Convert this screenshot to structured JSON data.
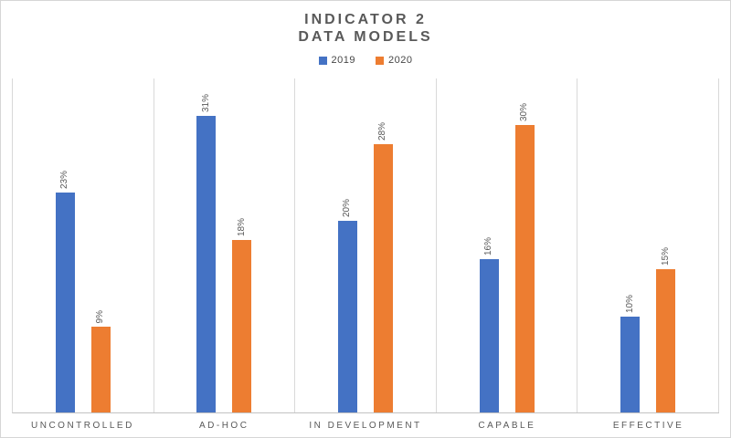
{
  "title": {
    "line1": "INDICATOR 2",
    "line2": "DATA MODELS"
  },
  "chart_data": {
    "type": "bar",
    "title": "INDICATOR 2 DATA MODELS",
    "categories": [
      "UNCONTROLLED",
      "AD-HOC",
      "IN DEVELOPMENT",
      "CAPABLE",
      "EFFECTIVE"
    ],
    "series": [
      {
        "name": "2019",
        "color": "#4472C4",
        "values": [
          23,
          31,
          20,
          16,
          10
        ]
      },
      {
        "name": "2020",
        "color": "#ED7D31",
        "values": [
          9,
          18,
          28,
          30,
          15
        ]
      }
    ],
    "value_suffix": "%",
    "data_labels": "rotated-90-above-bar",
    "ylim": [
      0,
      35
    ],
    "xlabel": "",
    "ylabel": "",
    "y_axis_ticks": "hidden",
    "grid": "vertical-panel-separators-only",
    "legend_position": "top-center"
  },
  "colors": {
    "series_2019": "#4472C4",
    "series_2020": "#ED7D31",
    "title_text": "#595959",
    "axis_text": "#595959",
    "panel_border": "#D9D9D9",
    "axis_line": "#C3C3C3",
    "background": "#FFFFFF"
  }
}
